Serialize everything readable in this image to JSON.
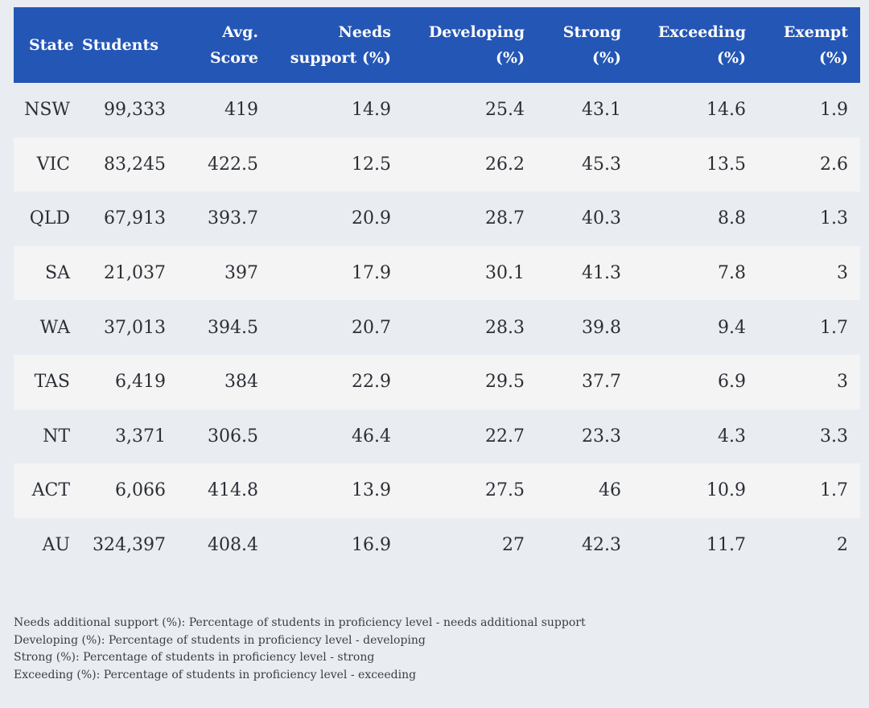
{
  "table": {
    "headers": [
      [
        "State"
      ],
      [
        "Students"
      ],
      [
        "Avg.",
        "Score"
      ],
      [
        "Needs",
        "support (%)"
      ],
      [
        "Developing",
        "(%)"
      ],
      [
        "Strong",
        "(%)"
      ],
      [
        "Exceeding",
        "(%)"
      ],
      [
        "Exempt",
        "(%)"
      ]
    ],
    "rows": [
      [
        "NSW",
        "99,333",
        "419",
        "14.9",
        "25.4",
        "43.1",
        "14.6",
        "1.9"
      ],
      [
        "VIC",
        "83,245",
        "422.5",
        "12.5",
        "26.2",
        "45.3",
        "13.5",
        "2.6"
      ],
      [
        "QLD",
        "67,913",
        "393.7",
        "20.9",
        "28.7",
        "40.3",
        "8.8",
        "1.3"
      ],
      [
        "SA",
        "21,037",
        "397",
        "17.9",
        "30.1",
        "41.3",
        "7.8",
        "3"
      ],
      [
        "WA",
        "37,013",
        "394.5",
        "20.7",
        "28.3",
        "39.8",
        "9.4",
        "1.7"
      ],
      [
        "TAS",
        "6,419",
        "384",
        "22.9",
        "29.5",
        "37.7",
        "6.9",
        "3"
      ],
      [
        "NT",
        "3,371",
        "306.5",
        "46.4",
        "22.7",
        "23.3",
        "4.3",
        "3.3"
      ],
      [
        "ACT",
        "6,066",
        "414.8",
        "13.9",
        "27.5",
        "46",
        "10.9",
        "1.7"
      ],
      [
        "AU",
        "324,397",
        "408.4",
        "16.9",
        "27",
        "42.3",
        "11.7",
        "2"
      ]
    ]
  },
  "footnotes": [
    "Needs additional support (%): Percentage of students in proficiency level - needs additional support",
    "Developing (%): Percentage of students in proficiency level - developing",
    "Strong (%): Percentage of students in proficiency level - strong",
    "Exceeding (%): Percentage of students in proficiency level - exceeding"
  ],
  "colors": {
    "header_bg": "#2456b5",
    "header_text": "#ffffff",
    "row_bg_odd": "#e9edf1",
    "row_bg_even": "#f4f4f4",
    "body_text": "#2b2f36"
  }
}
